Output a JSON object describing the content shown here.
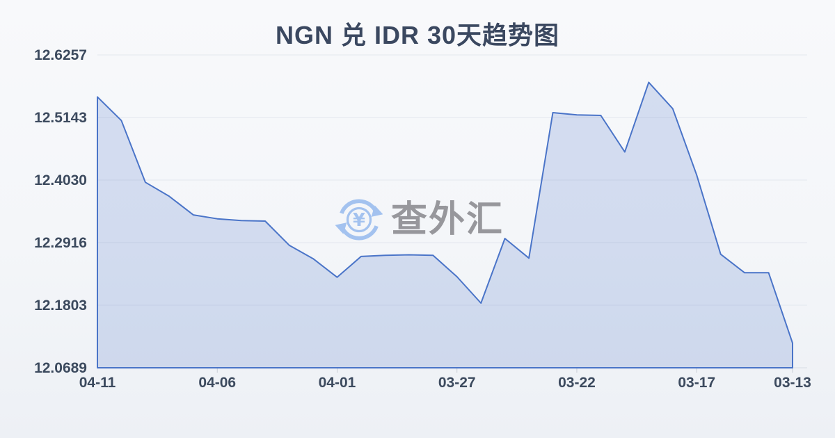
{
  "page": {
    "title": "NGN 兑 IDR 30天趋势图"
  },
  "watermark": {
    "icon": "currency-exchange-icon",
    "text": "查外汇"
  },
  "chart_data": {
    "type": "area",
    "title": "NGN 兑 IDR 30天趋势图",
    "x": [
      "04-11",
      "04-10",
      "04-09",
      "04-08",
      "04-07",
      "04-06",
      "04-05",
      "04-04",
      "04-03",
      "04-02",
      "04-01",
      "03-31",
      "03-30",
      "03-29",
      "03-28",
      "03-27",
      "03-26",
      "03-25",
      "03-24",
      "03-23",
      "03-22",
      "03-21",
      "03-20",
      "03-19",
      "03-18",
      "03-17",
      "03-16",
      "03-15",
      "03-14",
      "03-13"
    ],
    "values": [
      12.551,
      12.509,
      12.399,
      12.374,
      12.341,
      12.334,
      12.331,
      12.33,
      12.287,
      12.263,
      12.23,
      12.267,
      12.269,
      12.27,
      12.269,
      12.231,
      12.184,
      12.299,
      12.264,
      12.523,
      12.519,
      12.518,
      12.453,
      12.577,
      12.53,
      12.412,
      12.271,
      12.238,
      12.238,
      12.113
    ],
    "x_tick_labels": [
      "04-11",
      "04-06",
      "04-01",
      "03-27",
      "03-22",
      "03-17",
      "03-13"
    ],
    "x_tick_indices": [
      0,
      5,
      10,
      15,
      20,
      25,
      29
    ],
    "y_tick_labels": [
      "12.0689",
      "12.1803",
      "12.2916",
      "12.4030",
      "12.5143",
      "12.6257"
    ],
    "ylim": [
      12.0689,
      12.6257
    ],
    "grid": true,
    "legend": "none",
    "xlabel": "",
    "ylabel": "",
    "colors": {
      "line": "#4a74c8",
      "fill": "rgba(74,116,200,0.20)",
      "grid": "#e3e7ee",
      "axis_line": "#d8dce3",
      "tick": "#c9ced6",
      "axis_label": "#3c4a5e",
      "title": "#3b4860",
      "watermark_text": "#97979c",
      "watermark_icon": "#a3c2ef"
    }
  }
}
